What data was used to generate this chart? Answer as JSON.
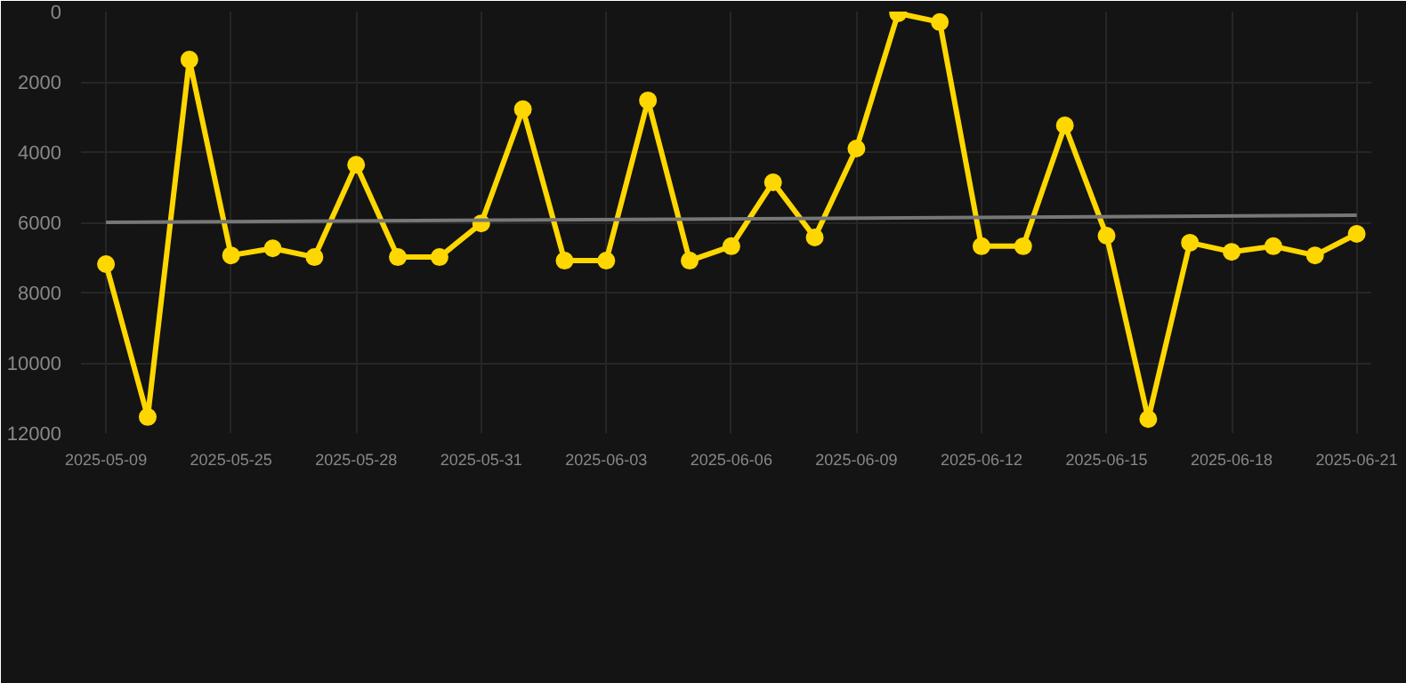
{
  "chart_data": {
    "type": "line",
    "categories": [
      "2025-05-09",
      null,
      null,
      "2025-05-25",
      null,
      null,
      "2025-05-28",
      null,
      null,
      "2025-05-31",
      null,
      null,
      "2025-06-03",
      null,
      null,
      "2025-06-06",
      null,
      null,
      "2025-06-09",
      null,
      null,
      "2025-06-12",
      null,
      null,
      "2025-06-15",
      null,
      null,
      "2025-06-18",
      null,
      null,
      "2025-06-21"
    ],
    "series": [
      {
        "color": "#ffd700",
        "marker": "circle",
        "values": [
          7190,
          11540,
          1370,
          6940,
          6740,
          6990,
          4360,
          6990,
          6990,
          6030,
          2780,
          7090,
          7090,
          2530,
          7090,
          6680,
          4860,
          6430,
          3900,
          50,
          300,
          6680,
          6680,
          3240,
          6380,
          11600,
          6580,
          6840,
          6680,
          6940,
          6330
        ]
      },
      {
        "type": "line",
        "color": "#777777",
        "marker": "none",
        "values": [
          6000,
          null,
          null,
          null,
          null,
          null,
          null,
          null,
          null,
          null,
          null,
          null,
          null,
          null,
          null,
          null,
          null,
          null,
          null,
          null,
          null,
          null,
          null,
          null,
          null,
          null,
          null,
          null,
          null,
          null,
          5800
        ]
      }
    ],
    "ylim": [
      12000,
      0
    ],
    "yticks": [
      0,
      2000,
      4000,
      6000,
      8000,
      10000,
      12000
    ],
    "grid": true
  }
}
